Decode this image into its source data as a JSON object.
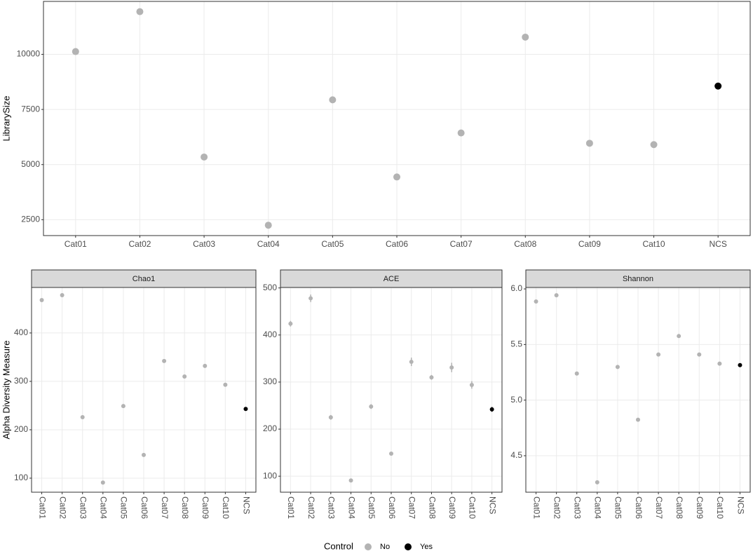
{
  "chart_data": [
    {
      "type": "scatter",
      "ylabel": "LibrarySize",
      "categories": [
        "Cat01",
        "Cat02",
        "Cat03",
        "Cat04",
        "Cat05",
        "Cat06",
        "Cat07",
        "Cat08",
        "Cat09",
        "Cat10",
        "NCS"
      ],
      "values": [
        10125,
        11935,
        5343,
        2250,
        7937,
        4438,
        6435,
        10780,
        5967,
        5906,
        8561
      ],
      "colors": [
        "#b3b3b3",
        "#b3b3b3",
        "#b3b3b3",
        "#b3b3b3",
        "#b3b3b3",
        "#b3b3b3",
        "#b3b3b3",
        "#b3b3b3",
        "#b3b3b3",
        "#b3b3b3",
        "#000000"
      ],
      "ylim": [
        1780,
        12400
      ],
      "yticks": [
        2500,
        5000,
        7500,
        10000
      ],
      "grid": true
    },
    {
      "type": "scatter",
      "title": "Chao1",
      "ylabel": "Alpha Diversity Measure",
      "categories": [
        "Cat01",
        "Cat02",
        "Cat03",
        "Cat04",
        "Cat05",
        "Cat06",
        "Cat07",
        "Cat08",
        "Cat09",
        "Cat10",
        "NCS"
      ],
      "values": [
        468,
        478,
        226,
        91,
        249,
        148,
        342,
        310,
        332,
        293,
        243
      ],
      "colors": [
        "#b3b3b3",
        "#b3b3b3",
        "#b3b3b3",
        "#b3b3b3",
        "#b3b3b3",
        "#b3b3b3",
        "#b3b3b3",
        "#b3b3b3",
        "#b3b3b3",
        "#b3b3b3",
        "#000000"
      ],
      "ylim": [
        71,
        494
      ],
      "yticks": [
        100,
        200,
        300,
        400
      ],
      "grid": true
    },
    {
      "type": "scatter",
      "title": "ACE",
      "categories": [
        "Cat01",
        "Cat02",
        "Cat03",
        "Cat04",
        "Cat05",
        "Cat06",
        "Cat07",
        "Cat08",
        "Cat09",
        "Cat10",
        "NCS"
      ],
      "values": [
        424,
        478,
        225,
        91,
        248,
        148,
        343,
        310,
        331,
        294,
        242
      ],
      "errors": [
        6,
        8,
        5,
        3,
        5,
        3,
        9,
        5,
        10,
        8,
        5
      ],
      "colors": [
        "#b3b3b3",
        "#b3b3b3",
        "#b3b3b3",
        "#b3b3b3",
        "#b3b3b3",
        "#b3b3b3",
        "#b3b3b3",
        "#b3b3b3",
        "#b3b3b3",
        "#b3b3b3",
        "#000000"
      ],
      "ylim": [
        66,
        501
      ],
      "yticks": [
        100,
        200,
        300,
        400,
        500
      ],
      "grid": true
    },
    {
      "type": "scatter",
      "title": "Shannon",
      "categories": [
        "Cat01",
        "Cat02",
        "Cat03",
        "Cat04",
        "Cat05",
        "Cat06",
        "Cat07",
        "Cat08",
        "Cat09",
        "Cat10",
        "NCS"
      ],
      "values": [
        5.887,
        5.943,
        5.239,
        4.261,
        5.298,
        4.824,
        5.41,
        5.576,
        5.41,
        5.328,
        5.315
      ],
      "colors": [
        "#b3b3b3",
        "#b3b3b3",
        "#b3b3b3",
        "#b3b3b3",
        "#b3b3b3",
        "#b3b3b3",
        "#b3b3b3",
        "#b3b3b3",
        "#b3b3b3",
        "#b3b3b3",
        "#000000"
      ],
      "ylim": [
        4.172,
        6.013
      ],
      "yticks": [
        4.5,
        {
          "value": 5,
          "label": "5.0"
        },
        5.5,
        {
          "value": 6,
          "label": "6.0"
        }
      ],
      "grid": true
    }
  ],
  "legend": {
    "title": "Control",
    "entries": [
      {
        "name": "No",
        "color": "#b3b3b3"
      },
      {
        "name": "Yes",
        "color": "#000000"
      }
    ]
  }
}
